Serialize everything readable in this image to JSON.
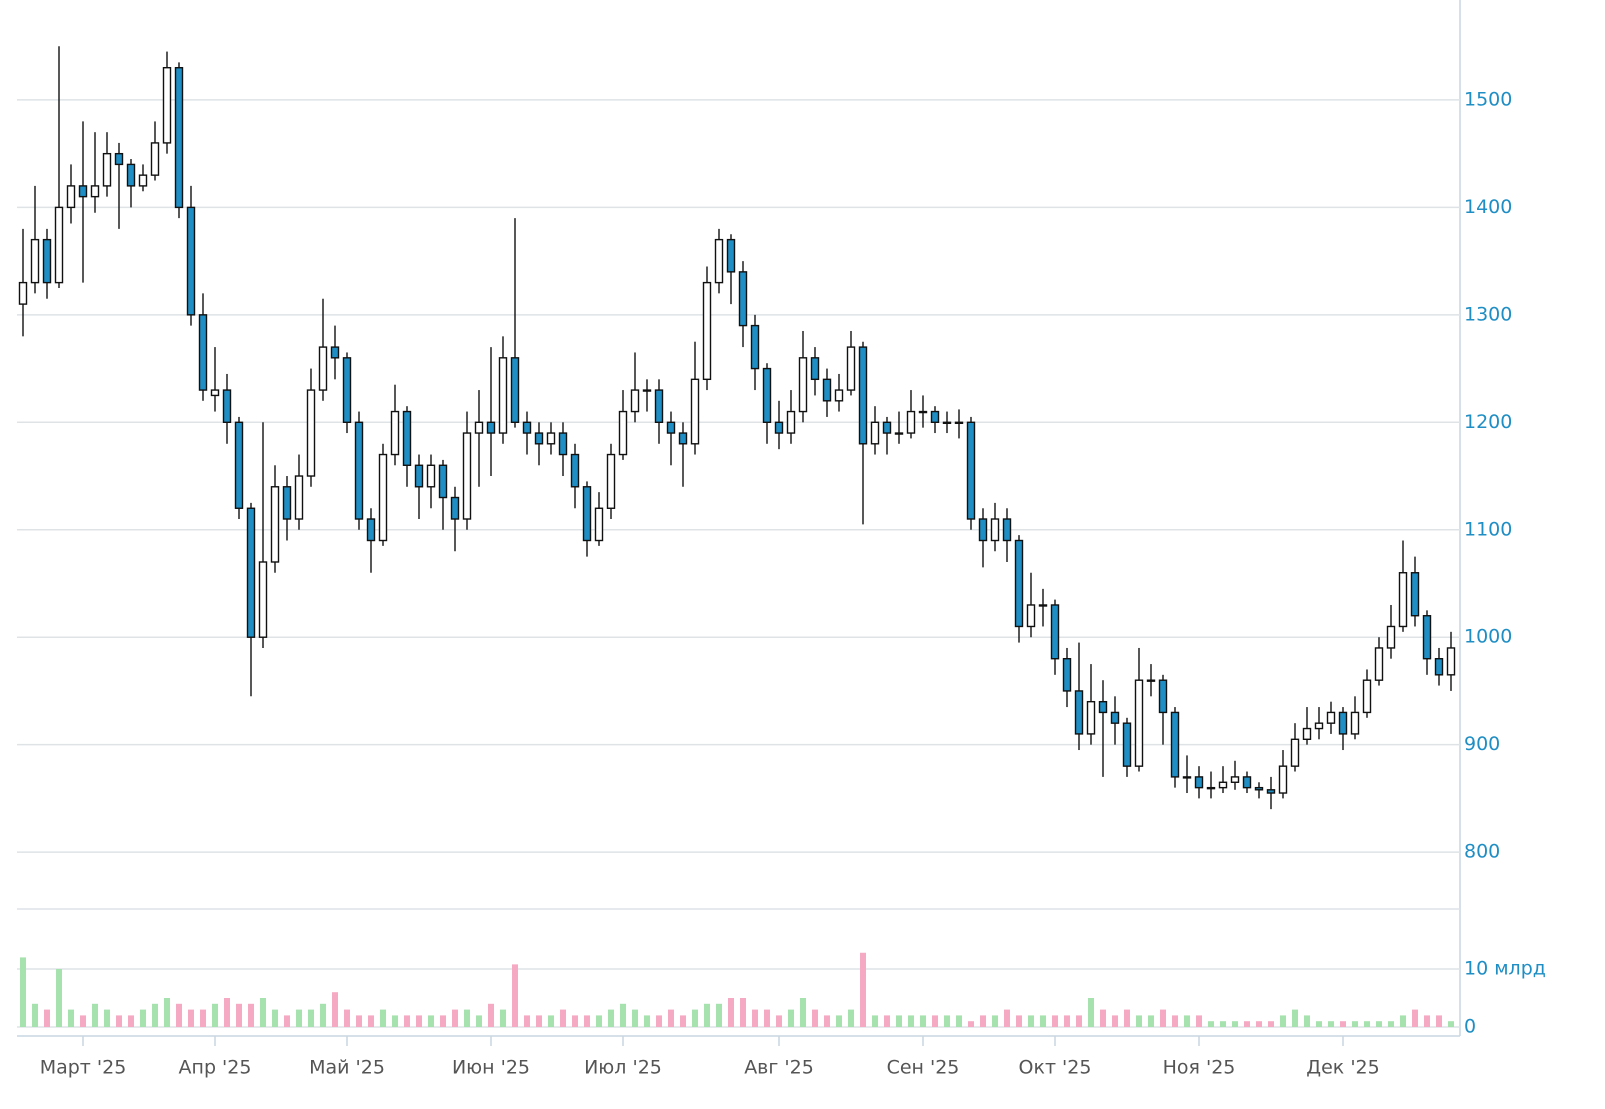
{
  "chart_data": {
    "type": "candlestick",
    "categories": [
      null,
      null,
      null,
      null,
      null,
      "Март '25",
      null,
      null,
      null,
      null,
      null,
      null,
      null,
      null,
      null,
      null,
      "Апр '25",
      null,
      null,
      null,
      null,
      null,
      null,
      null,
      null,
      null,
      null,
      "Май '25",
      null,
      null,
      null,
      null,
      null,
      null,
      null,
      null,
      null,
      null,
      null,
      "Июн '25",
      null,
      null,
      null,
      null,
      null,
      null,
      null,
      null,
      null,
      null,
      "Июл '25",
      null,
      null,
      null,
      null,
      null,
      null,
      null,
      null,
      null,
      null,
      null,
      null,
      "Авг '25",
      null,
      null,
      null,
      null,
      null,
      null,
      null,
      null,
      null,
      null,
      null,
      "Сен '25",
      null,
      null,
      null,
      null,
      null,
      null,
      null,
      null,
      null,
      null,
      "Окт '25",
      null,
      null,
      null,
      null,
      null,
      null,
      null,
      null,
      null,
      null,
      null,
      "Ноя '25",
      null,
      null,
      null,
      null,
      null,
      null,
      null,
      null,
      null,
      null,
      null,
      "Дек '25",
      null,
      null,
      null,
      null,
      null,
      null,
      null,
      null,
      null
    ],
    "open": [
      1310,
      1330,
      1370,
      1330,
      1400,
      1420,
      1410,
      1420,
      1450,
      1440,
      1420,
      1430,
      1460,
      1530,
      1400,
      1300,
      1225,
      1230,
      1200,
      1120,
      1000,
      1070,
      1140,
      1110,
      1150,
      1230,
      1270,
      1260,
      1200,
      1110,
      1090,
      1170,
      1210,
      1160,
      1140,
      1160,
      1130,
      1110,
      1190,
      1200,
      1190,
      1260,
      1200,
      1190,
      1180,
      1190,
      1170,
      1140,
      1090,
      1120,
      1170,
      1210,
      1230,
      1230,
      1200,
      1190,
      1180,
      1240,
      1330,
      1370,
      1340,
      1290,
      1250,
      1200,
      1190,
      1210,
      1260,
      1240,
      1220,
      1230,
      1270,
      1180,
      1200,
      1190,
      1190,
      1210,
      1210,
      1200,
      1200,
      1200,
      1110,
      1090,
      1110,
      1090,
      1010,
      1030,
      1030,
      980,
      950,
      910,
      940,
      930,
      920,
      880,
      960,
      960,
      930,
      870,
      870,
      860,
      860,
      865,
      870,
      860,
      858,
      855,
      880,
      905,
      915,
      920,
      930,
      910,
      930,
      960,
      990,
      1010,
      1060,
      1020,
      980,
      965
    ],
    "high": [
      1380,
      1420,
      1380,
      1550,
      1440,
      1480,
      1470,
      1470,
      1460,
      1445,
      1440,
      1480,
      1545,
      1535,
      1420,
      1320,
      1270,
      1245,
      1205,
      1125,
      1200,
      1160,
      1150,
      1170,
      1250,
      1315,
      1290,
      1265,
      1210,
      1120,
      1180,
      1235,
      1215,
      1170,
      1170,
      1165,
      1140,
      1210,
      1230,
      1270,
      1280,
      1390,
      1210,
      1200,
      1200,
      1200,
      1180,
      1145,
      1135,
      1180,
      1230,
      1265,
      1240,
      1240,
      1210,
      1200,
      1275,
      1345,
      1380,
      1375,
      1350,
      1300,
      1255,
      1220,
      1230,
      1285,
      1270,
      1250,
      1245,
      1285,
      1275,
      1215,
      1205,
      1210,
      1230,
      1225,
      1215,
      1210,
      1212,
      1205,
      1120,
      1125,
      1120,
      1095,
      1060,
      1045,
      1035,
      990,
      995,
      975,
      960,
      945,
      925,
      990,
      975,
      965,
      935,
      890,
      880,
      875,
      880,
      885,
      875,
      865,
      870,
      895,
      920,
      935,
      935,
      940,
      935,
      945,
      970,
      1000,
      1030,
      1090,
      1075,
      1025,
      990,
      1005
    ],
    "low": [
      1280,
      1320,
      1315,
      1325,
      1385,
      1330,
      1395,
      1410,
      1380,
      1400,
      1415,
      1425,
      1450,
      1390,
      1290,
      1220,
      1210,
      1180,
      1110,
      945,
      990,
      1060,
      1090,
      1100,
      1140,
      1220,
      1240,
      1190,
      1100,
      1060,
      1085,
      1160,
      1140,
      1110,
      1120,
      1100,
      1080,
      1100,
      1140,
      1150,
      1180,
      1195,
      1170,
      1160,
      1170,
      1150,
      1120,
      1075,
      1085,
      1110,
      1165,
      1200,
      1210,
      1180,
      1160,
      1140,
      1170,
      1230,
      1320,
      1310,
      1270,
      1230,
      1180,
      1175,
      1180,
      1200,
      1225,
      1205,
      1210,
      1225,
      1105,
      1170,
      1170,
      1180,
      1185,
      1195,
      1190,
      1190,
      1185,
      1100,
      1065,
      1080,
      1070,
      995,
      1000,
      1010,
      965,
      935,
      895,
      900,
      870,
      900,
      870,
      875,
      945,
      900,
      860,
      855,
      850,
      850,
      855,
      858,
      855,
      850,
      840,
      850,
      875,
      900,
      905,
      910,
      895,
      905,
      925,
      955,
      980,
      1005,
      1010,
      965,
      955,
      950
    ],
    "close": [
      1330,
      1370,
      1330,
      1400,
      1420,
      1410,
      1420,
      1450,
      1440,
      1420,
      1430,
      1460,
      1530,
      1400,
      1300,
      1230,
      1230,
      1200,
      1120,
      1000,
      1070,
      1140,
      1110,
      1150,
      1230,
      1270,
      1260,
      1200,
      1110,
      1090,
      1170,
      1210,
      1160,
      1140,
      1160,
      1130,
      1110,
      1190,
      1200,
      1190,
      1260,
      1200,
      1190,
      1180,
      1190,
      1170,
      1140,
      1090,
      1120,
      1170,
      1210,
      1230,
      1230,
      1200,
      1190,
      1180,
      1240,
      1330,
      1370,
      1340,
      1290,
      1250,
      1200,
      1190,
      1210,
      1260,
      1240,
      1220,
      1230,
      1270,
      1180,
      1200,
      1190,
      1190,
      1210,
      1210,
      1200,
      1200,
      1200,
      1110,
      1090,
      1110,
      1090,
      1010,
      1030,
      1030,
      980,
      950,
      910,
      940,
      930,
      920,
      880,
      960,
      960,
      930,
      870,
      870,
      860,
      860,
      865,
      870,
      860,
      858,
      855,
      880,
      905,
      915,
      920,
      930,
      910,
      930,
      960,
      990,
      1010,
      1060,
      1020,
      980,
      965,
      990
    ],
    "up_color": "#ffffff",
    "down_color": "#1f8ec4",
    "ylim": [
      748,
      1593
    ],
    "yticks": [
      800,
      900,
      1000,
      1100,
      1200,
      1300,
      1400,
      1500
    ],
    "grid": true,
    "volume": {
      "values": [
        12,
        4,
        3,
        10,
        3,
        2,
        4,
        3,
        2,
        2,
        3,
        4,
        5,
        4,
        3,
        3,
        4,
        5,
        4,
        4,
        5,
        3,
        2,
        3,
        3,
        4,
        6,
        3,
        2,
        2,
        3,
        2,
        2,
        2,
        2,
        2,
        3,
        3,
        2,
        4,
        3,
        10.8,
        2,
        2,
        2,
        3,
        2,
        2,
        2,
        3,
        4,
        3,
        2,
        2,
        3,
        2,
        3,
        4,
        4,
        5,
        5,
        3,
        3,
        2,
        3,
        5,
        3,
        2,
        2,
        3,
        12.8,
        2,
        2,
        2,
        2,
        2,
        2,
        2,
        2,
        1,
        2,
        2,
        3,
        2,
        2,
        2,
        2,
        2,
        2,
        5,
        3,
        2,
        3,
        2,
        2,
        3,
        2,
        2,
        2,
        1,
        1,
        1,
        1,
        1,
        1,
        2,
        3,
        2,
        1,
        1,
        1,
        1,
        1,
        1,
        1,
        2,
        3,
        2,
        2,
        1
      ],
      "ylim": [
        0,
        20
      ],
      "yticks": [
        0,
        {
          "value": 10,
          "label": "10 млрд"
        }
      ],
      "up_color": "#a6e2ae",
      "down_color": "#f6a9c3"
    }
  }
}
